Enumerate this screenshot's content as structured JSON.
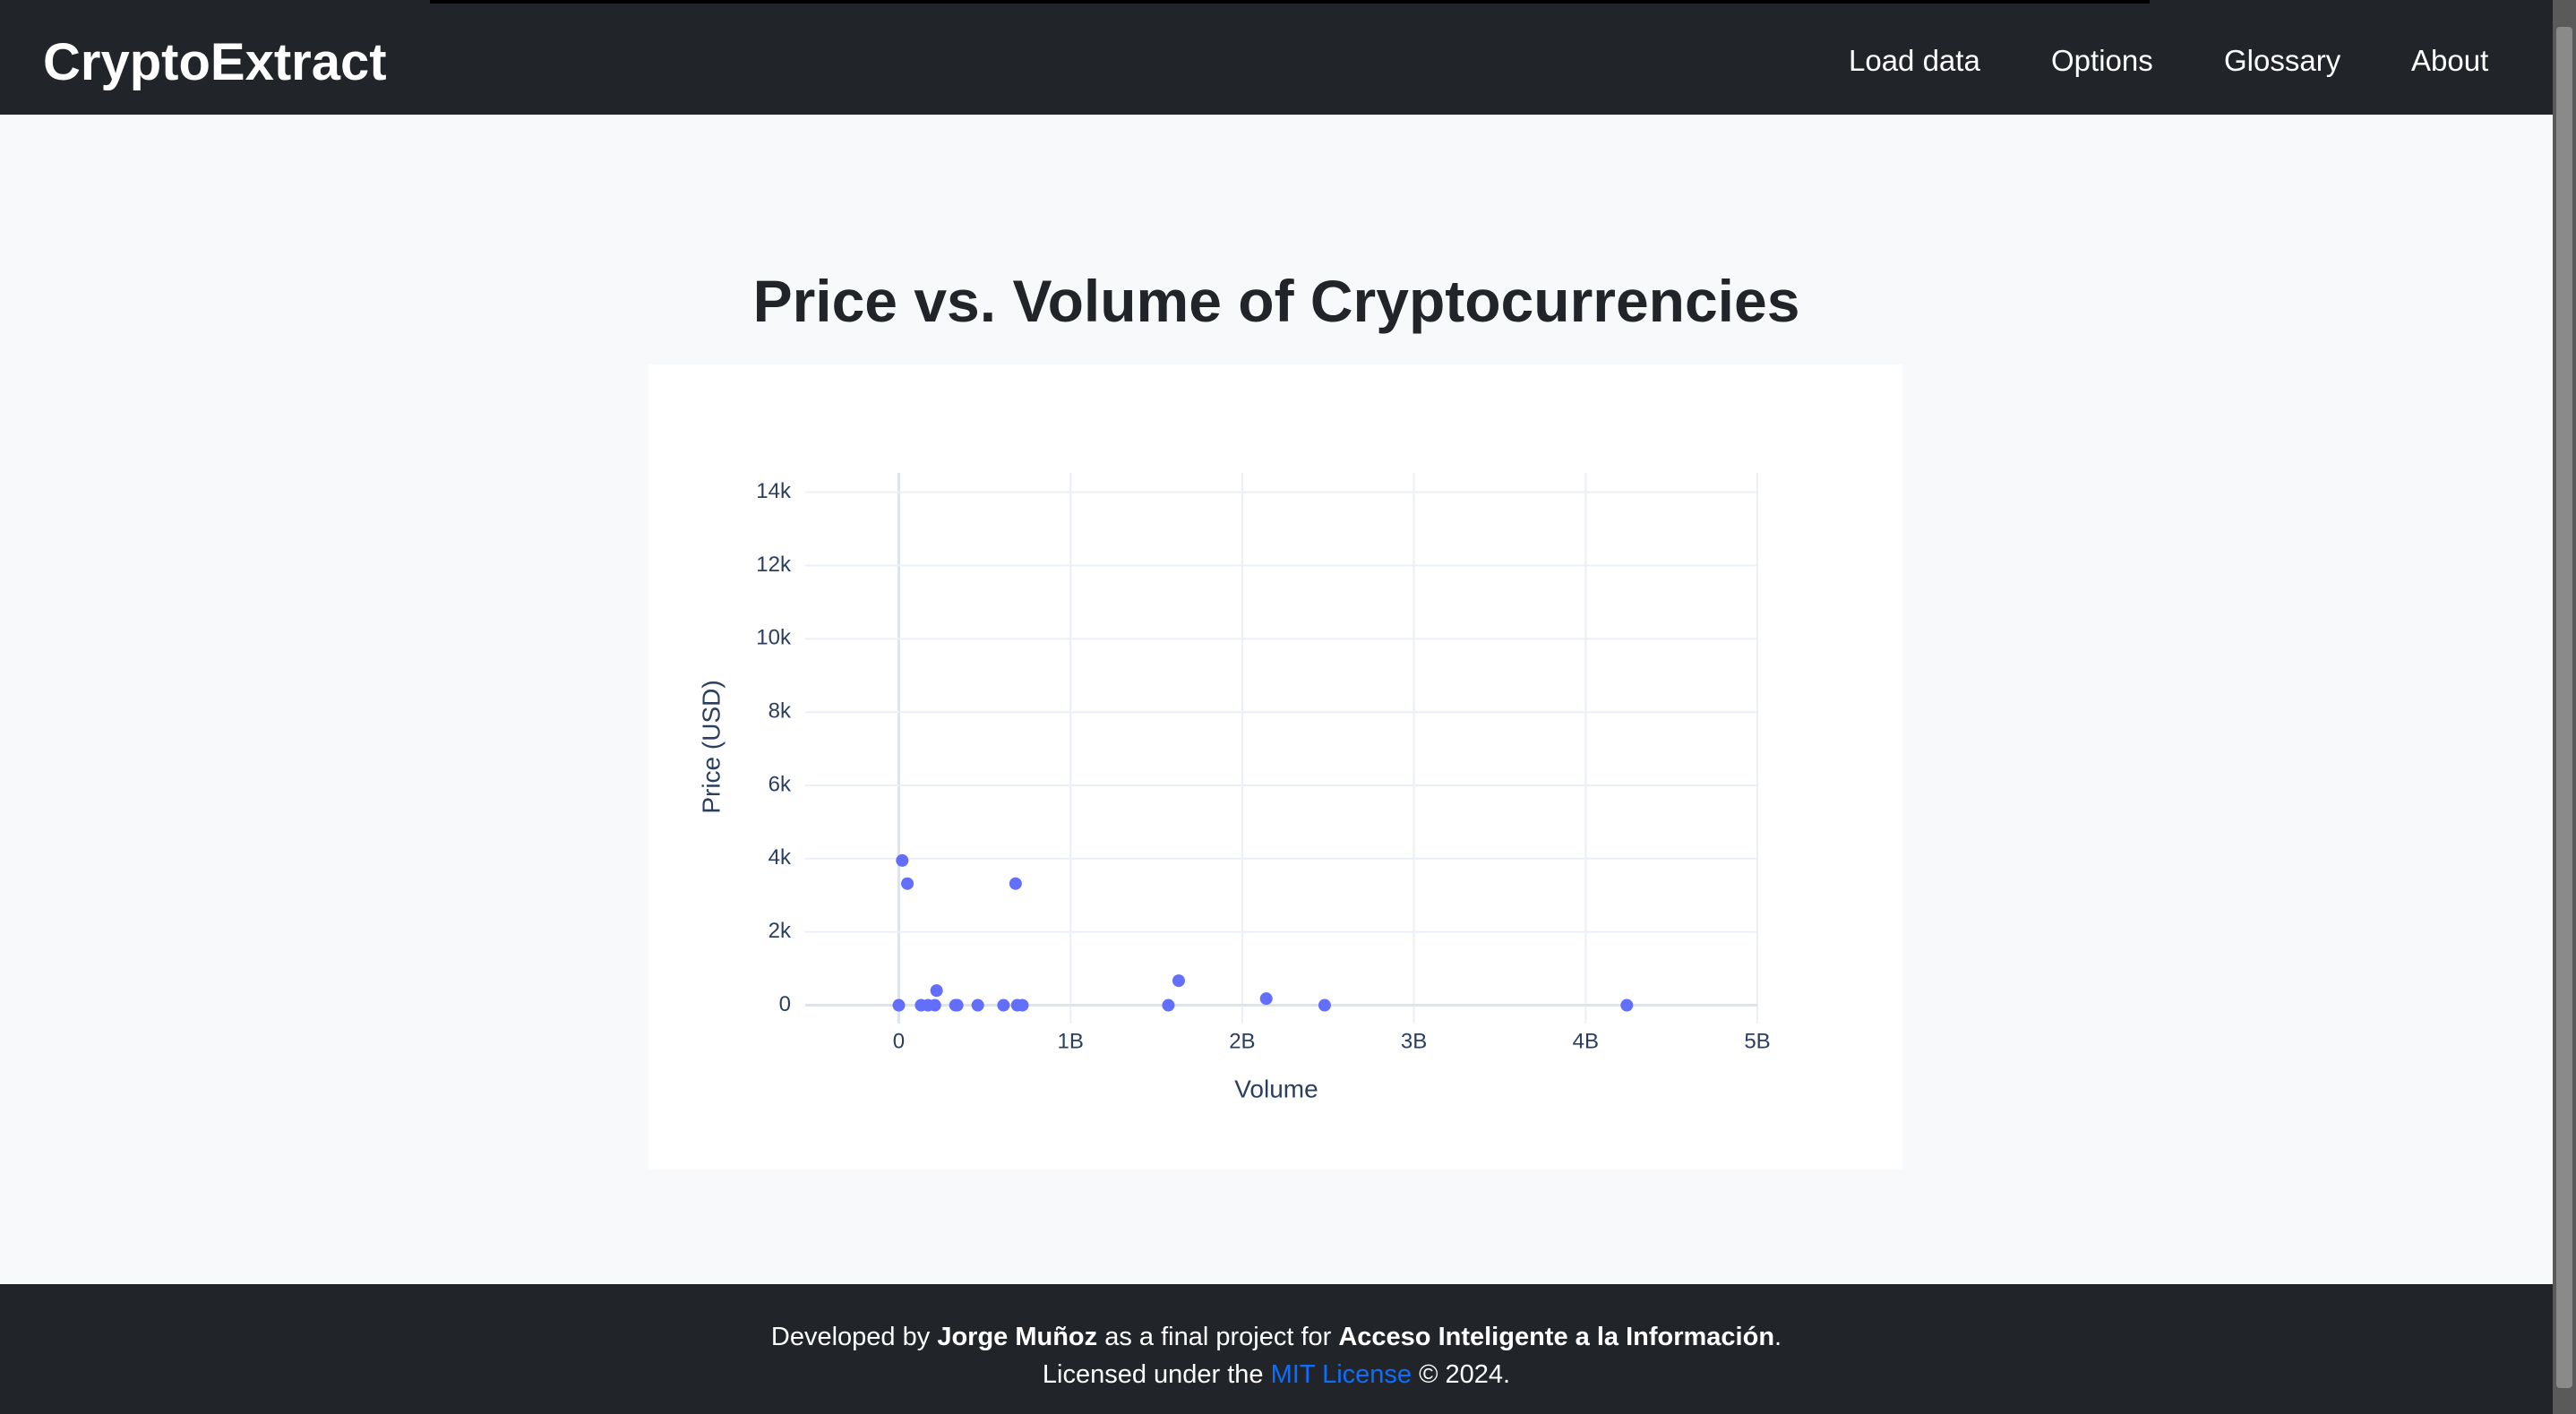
{
  "navbar": {
    "brand": "CryptoExtract",
    "links": [
      "Load data",
      "Options",
      "Glossary",
      "About"
    ]
  },
  "chart_data": {
    "type": "scatter",
    "title": "Price vs. Volume of Cryptocurrencies",
    "xlabel": "Volume",
    "ylabel": "Price (USD)",
    "color": "#636efa",
    "grid": true,
    "x": [
      20000000,
      50000000,
      0,
      130000000,
      170000000,
      210000000,
      220000000,
      330000000,
      340000000,
      460000000,
      610000000,
      680000000,
      690000000,
      720000000,
      1570000000,
      1630000000,
      2140000000,
      2480000000,
      4240000000
    ],
    "values": [
      3950,
      3320,
      0,
      0,
      0,
      0,
      400,
      0,
      0,
      0,
      0,
      3320,
      0,
      0,
      0,
      670,
      180,
      0,
      0
    ],
    "xlim": [
      -545000000,
      5000000000
    ],
    "ylim": [
      -500,
      14530
    ],
    "xticks": [
      0,
      {
        "value": 1000000000,
        "label": "1B"
      },
      {
        "value": 2000000000,
        "label": "2B"
      },
      {
        "value": 3000000000,
        "label": "3B"
      },
      {
        "value": 4000000000,
        "label": "4B"
      },
      {
        "value": 5000000000,
        "label": "5B"
      }
    ],
    "yticks": [
      0,
      {
        "value": 2000,
        "label": "2k"
      },
      {
        "value": 4000,
        "label": "4k"
      },
      {
        "value": 6000,
        "label": "6k"
      },
      {
        "value": 8000,
        "label": "8k"
      },
      {
        "value": 10000,
        "label": "10k"
      },
      {
        "value": 12000,
        "label": "12k"
      },
      {
        "value": 14000,
        "label": "14k"
      }
    ]
  },
  "footer": {
    "line1": [
      "Developed by ",
      "Jorge Muñoz",
      " as a final project for ",
      "Acceso Inteligente a la Información",
      "."
    ],
    "line2": [
      "Licensed under the ",
      "MIT License",
      " © 2024."
    ]
  }
}
